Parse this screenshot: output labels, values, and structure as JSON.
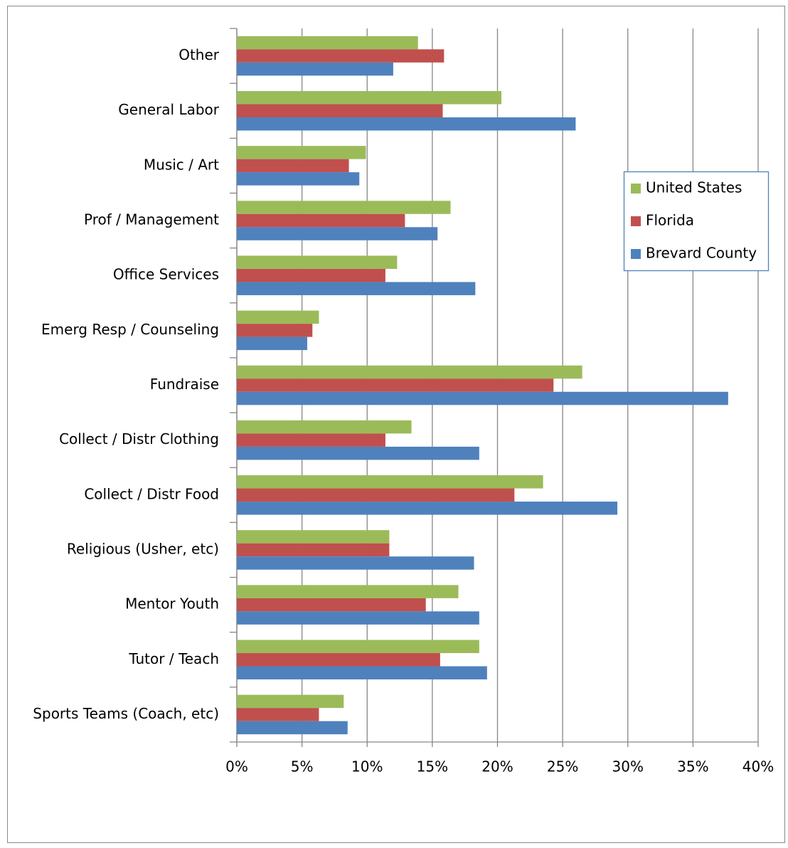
{
  "chart_data": {
    "type": "hbar",
    "categories": [
      "Other",
      "General Labor",
      "Music / Art",
      "Prof / Management",
      "Office Services",
      "Emerg Resp / Counseling",
      "Fundraise",
      "Collect / Distr Clothing",
      "Collect / Distr Food",
      "Religious (Usher, etc)",
      "Mentor Youth",
      "Tutor / Teach",
      "Sports Teams (Coach, etc)"
    ],
    "series": [
      {
        "name": "United States",
        "color": "#9bbb59",
        "values": [
          13.9,
          20.3,
          9.9,
          16.4,
          12.3,
          6.3,
          26.5,
          13.4,
          23.5,
          11.7,
          17.0,
          18.6,
          8.2
        ]
      },
      {
        "name": "Florida",
        "color": "#c0504d",
        "values": [
          15.9,
          15.8,
          8.6,
          12.9,
          11.4,
          5.8,
          24.3,
          11.4,
          21.3,
          11.7,
          14.5,
          15.6,
          6.3
        ]
      },
      {
        "name": "Brevard County",
        "color": "#4f81bd",
        "values": [
          12.0,
          26.0,
          9.4,
          15.4,
          18.3,
          5.4,
          37.7,
          18.6,
          29.2,
          18.2,
          18.6,
          19.2,
          8.5
        ]
      }
    ],
    "xlim": [
      0,
      40
    ],
    "xticks": [
      {
        "value": 0,
        "label": "0%"
      },
      {
        "value": 5,
        "label": "5%"
      },
      {
        "value": 10,
        "label": "10%"
      },
      {
        "value": 15,
        "label": "15%"
      },
      {
        "value": 20,
        "label": "20%"
      },
      {
        "value": 25,
        "label": "25%"
      },
      {
        "value": 30,
        "label": "30%"
      },
      {
        "value": 35,
        "label": "35%"
      },
      {
        "value": 40,
        "label": "40%"
      }
    ],
    "grid": true,
    "legend": "right"
  }
}
